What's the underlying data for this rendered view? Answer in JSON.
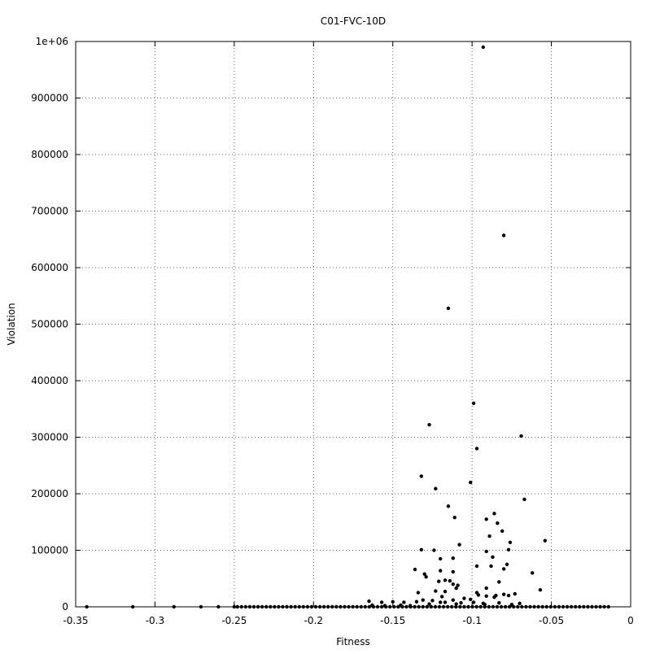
{
  "chart_data": {
    "type": "scatter",
    "title": "C01-FVC-10D",
    "xlabel": "Fitness",
    "ylabel": "Violation",
    "xlim": [
      -0.35,
      0
    ],
    "ylim": [
      0,
      1000000
    ],
    "grid": true,
    "legend": "none",
    "point_color": "#000000",
    "x_ticks": [
      {
        "value": -0.35,
        "label": "-0.35"
      },
      {
        "value": -0.3,
        "label": "-0.3"
      },
      {
        "value": -0.25,
        "label": "-0.25"
      },
      {
        "value": -0.2,
        "label": "-0.2"
      },
      {
        "value": -0.15,
        "label": "-0.15"
      },
      {
        "value": -0.1,
        "label": "-0.1"
      },
      {
        "value": -0.05,
        "label": "-0.05"
      },
      {
        "value": 0,
        "label": "0"
      }
    ],
    "y_ticks": [
      {
        "value": 0,
        "label": "0"
      },
      {
        "value": 100000,
        "label": "100000"
      },
      {
        "value": 200000,
        "label": "200000"
      },
      {
        "value": 300000,
        "label": "300000"
      },
      {
        "value": 400000,
        "label": "400000"
      },
      {
        "value": 500000,
        "label": "500000"
      },
      {
        "value": 600000,
        "label": "600000"
      },
      {
        "value": 700000,
        "label": "700000"
      },
      {
        "value": 800000,
        "label": "800000"
      },
      {
        "value": 900000,
        "label": "900000"
      },
      {
        "value": 1000000,
        "label": "1e+06"
      }
    ],
    "points": [
      [
        -0.093,
        990000
      ],
      [
        -0.08,
        657000
      ],
      [
        -0.115,
        528000
      ],
      [
        -0.099,
        360000
      ],
      [
        -0.069,
        302000
      ],
      [
        -0.127,
        322000
      ],
      [
        -0.097,
        280000
      ],
      [
        -0.132,
        231000
      ],
      [
        -0.101,
        220000
      ],
      [
        -0.123,
        209000
      ],
      [
        -0.067,
        190000
      ],
      [
        -0.115,
        178000
      ],
      [
        -0.111,
        158000
      ],
      [
        -0.086,
        165000
      ],
      [
        -0.091,
        155000
      ],
      [
        -0.084,
        148000
      ],
      [
        -0.081,
        134000
      ],
      [
        -0.089,
        125000
      ],
      [
        -0.076,
        114000
      ],
      [
        -0.054,
        117000
      ],
      [
        -0.108,
        110000
      ],
      [
        -0.077,
        101000
      ],
      [
        -0.124,
        100000
      ],
      [
        -0.132,
        101000
      ],
      [
        -0.091,
        98000
      ],
      [
        -0.087,
        88000
      ],
      [
        -0.112,
        86000
      ],
      [
        -0.12,
        85000
      ],
      [
        -0.078,
        75000
      ],
      [
        -0.097,
        72000
      ],
      [
        -0.088,
        72000
      ],
      [
        -0.136,
        66000
      ],
      [
        -0.12,
        64000
      ],
      [
        -0.08,
        67000
      ],
      [
        -0.062,
        60000
      ],
      [
        -0.112,
        62000
      ],
      [
        -0.13,
        58000
      ],
      [
        -0.129,
        53000
      ],
      [
        -0.117,
        47000
      ],
      [
        -0.114,
        46000
      ],
      [
        -0.121,
        45000
      ],
      [
        -0.112,
        40000
      ],
      [
        -0.083,
        44000
      ],
      [
        -0.109,
        38000
      ],
      [
        -0.11,
        33000
      ],
      [
        -0.091,
        33000
      ],
      [
        -0.057,
        30000
      ],
      [
        -0.123,
        28000
      ],
      [
        -0.117,
        27000
      ],
      [
        -0.097,
        25000
      ],
      [
        -0.134,
        25000
      ],
      [
        -0.073,
        23000
      ],
      [
        -0.08,
        22000
      ],
      [
        -0.096,
        21000
      ],
      [
        -0.091,
        19000
      ],
      [
        -0.085,
        20000
      ],
      [
        -0.077,
        20000
      ],
      [
        -0.119,
        18000
      ],
      [
        -0.105,
        15000
      ],
      [
        -0.086,
        17000
      ],
      [
        -0.101,
        13000
      ],
      [
        -0.112,
        12000
      ],
      [
        -0.125,
        11000
      ],
      [
        -0.131,
        12000
      ],
      [
        -0.135,
        9000
      ],
      [
        -0.165,
        10000
      ],
      [
        -0.157,
        8000
      ],
      [
        -0.15,
        9000
      ],
      [
        -0.143,
        8000
      ],
      [
        -0.12,
        8000
      ],
      [
        -0.117,
        8000
      ],
      [
        -0.107,
        7000
      ],
      [
        -0.099,
        8000
      ],
      [
        -0.093,
        6000
      ],
      [
        -0.083,
        7000
      ],
      [
        -0.07,
        6000
      ],
      [
        -0.127,
        5000
      ],
      [
        -0.11,
        5000
      ],
      [
        -0.092,
        4000
      ],
      [
        -0.075,
        4000
      ],
      [
        -0.145,
        3000
      ],
      [
        -0.163,
        3000
      ],
      [
        -0.155,
        2000
      ],
      [
        -0.139,
        2000
      ],
      [
        -0.343,
        0
      ],
      [
        -0.314,
        0
      ],
      [
        -0.288,
        0
      ],
      [
        -0.271,
        0
      ],
      [
        -0.26,
        0
      ],
      [
        -0.25,
        0
      ]
    ],
    "dense_band": {
      "x_start": -0.248,
      "x_end": -0.013,
      "step": 0.0026,
      "y": 0
    }
  }
}
